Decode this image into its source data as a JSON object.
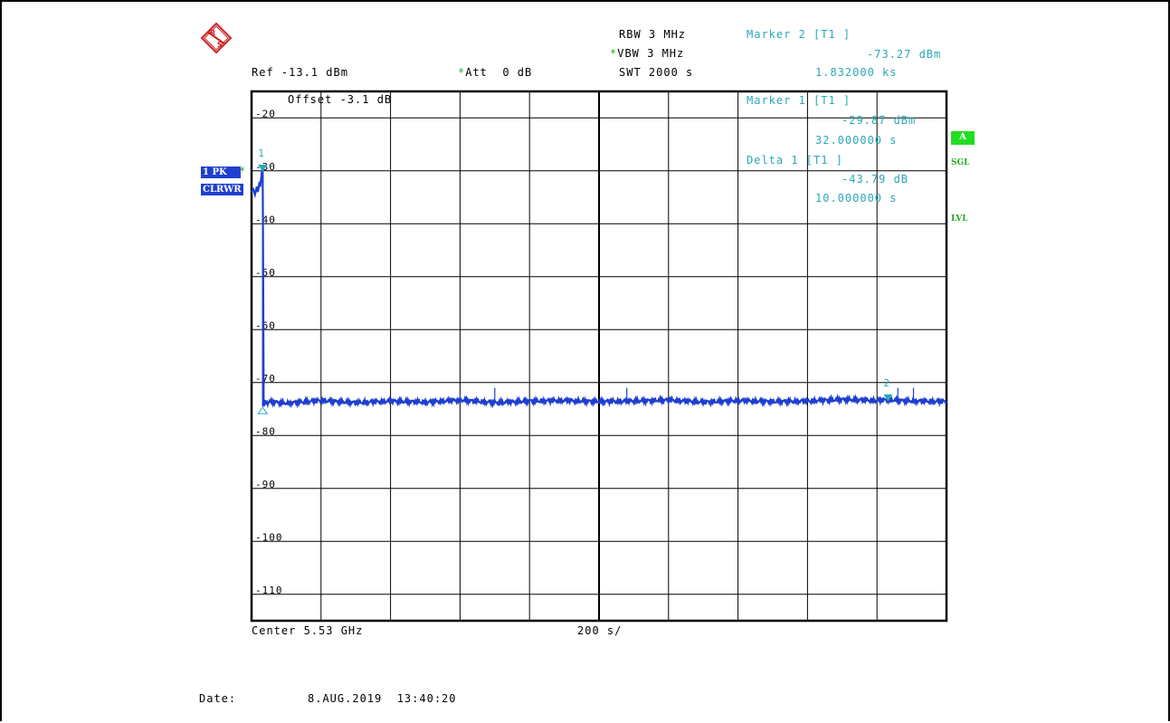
{
  "header": {
    "ref": "Ref -13.1 dBm",
    "att": "Att  0 dB",
    "rbw": "RBW 3 MHz",
    "vbw": "VBW 3 MHz",
    "swt": "SWT 2000 s",
    "marker2_title": "Marker 2 [T1 ]",
    "marker2_level": "-73.27 dBm",
    "marker2_time": "1.832000 ks",
    "marker1_title": "Marker 1 [T1 ]",
    "marker1_level": "-29.87 dBm",
    "marker1_time": "32.000000 s",
    "delta_title": "Delta 1 [T1 ]",
    "delta_level": "-43.79 dB",
    "delta_time": "10.000000 s",
    "offset": "Offset -3.1 dB"
  },
  "trace_badges": {
    "pk": "1 PK",
    "clrwr": "CLRWR"
  },
  "side_labels": {
    "a": "A",
    "sgl": "SGL",
    "lvl": "LVL"
  },
  "footer": {
    "center": "Center 5.53 GHz",
    "span_div": "200 s/",
    "date_label": "Date:",
    "date_value": "8.AUG.2019  13:40:20"
  },
  "colors": {
    "trace": "#1f3fd0",
    "marker": "#29a8b8",
    "accent_green": "#22dd22"
  },
  "chart_data": {
    "type": "line",
    "title": "",
    "xlabel": "Center 5.53 GHz",
    "ylabel": "",
    "ylim": [
      -115,
      -15
    ],
    "xlim": [
      0,
      2000
    ],
    "grid": true,
    "y_ticks": [
      -20,
      -30,
      -40,
      -50,
      -60,
      -70,
      -80,
      -90,
      -100,
      -110
    ],
    "y_tick_labels": [
      "-20",
      "-30",
      "-40",
      "-50",
      "-60",
      "-70",
      "-80",
      "-90",
      "-100",
      "-110"
    ],
    "series": [
      {
        "x": [
          0,
          5,
          10,
          15,
          18,
          22,
          25,
          30,
          32,
          35,
          40,
          42,
          45,
          50,
          100,
          200,
          300,
          400,
          500,
          600,
          700,
          800,
          900,
          1000,
          1100,
          1200,
          1300,
          1400,
          1500,
          1600,
          1700,
          1800,
          1832,
          1900,
          2000
        ],
        "values": [
          -34,
          -33.5,
          -34.5,
          -33,
          -34,
          -32.5,
          -33,
          -30,
          -29.87,
          -74.5,
          -73.5,
          -73.8,
          -73.9,
          -73.6,
          -73.9,
          -73.4,
          -73.8,
          -73.5,
          -73.7,
          -73.3,
          -73.8,
          -73.5,
          -73.4,
          -73.6,
          -73.5,
          -73.3,
          -73.7,
          -73.4,
          -73.6,
          -73.5,
          -73.2,
          -73.4,
          -73.27,
          -73.5,
          -73.6
        ]
      }
    ],
    "markers": [
      {
        "label": "1",
        "x": 32,
        "y": -29.87
      },
      {
        "label": "2",
        "x": 1832,
        "y": -73.27
      }
    ]
  }
}
